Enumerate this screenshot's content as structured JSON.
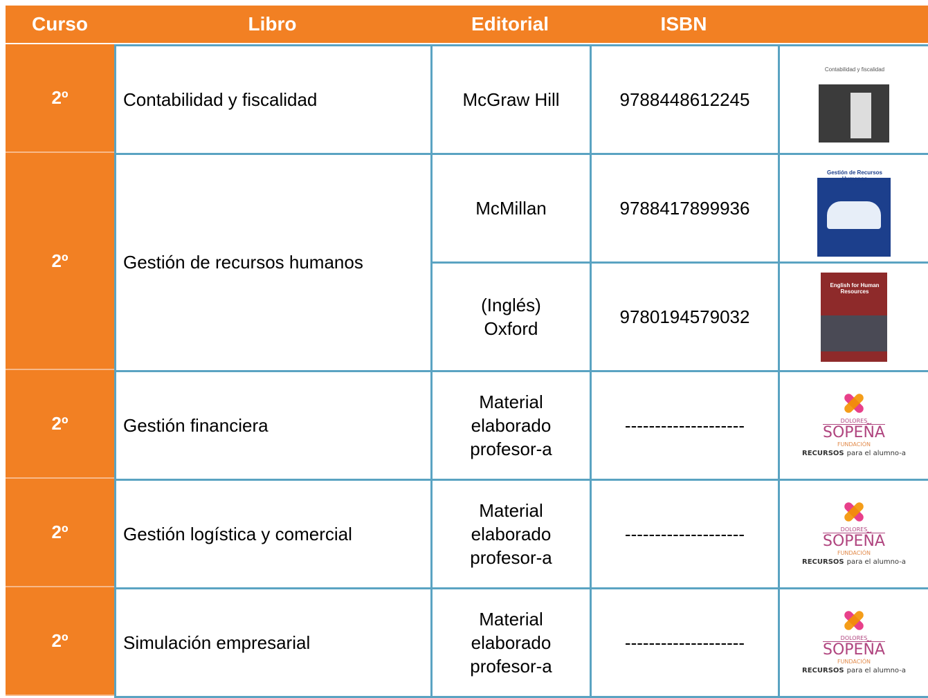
{
  "table": {
    "header": [
      "Curso",
      "Libro",
      "Editorial",
      "ISBN"
    ],
    "rows": [
      {
        "curso": "2º",
        "libro": "Contabilidad y fiscalidad",
        "editions": [
          {
            "editorial": [
              "McGraw Hill"
            ],
            "isbn": "9788448612245",
            "cover": {
              "title": "Contabilidad y fiscalidad",
              "style": "gray"
            }
          }
        ]
      },
      {
        "curso": "2º",
        "libro": "Gestión de recursos humanos",
        "editions": [
          {
            "editorial": [
              "McMillan"
            ],
            "isbn": "9788417899936",
            "cover": {
              "title": "Gestión de Recursos Humanos",
              "style": "blue"
            }
          },
          {
            "editorial": [
              "(Inglés)",
              "Oxford"
            ],
            "isbn": "9780194579032",
            "cover": {
              "title": "English for Human Resources",
              "style": "red"
            }
          }
        ]
      },
      {
        "curso": "2º",
        "libro": "Gestión financiera",
        "editions": [
          {
            "editorial": [
              "Material",
              "elaborado",
              "profesor-a"
            ],
            "isbn": "--------------------",
            "logo": true
          }
        ]
      },
      {
        "curso": "2º",
        "libro": "Gestión logística y comercial",
        "editions": [
          {
            "editorial": [
              "Material",
              "elaborado",
              "profesor-a"
            ],
            "isbn": "--------------------",
            "logo": true
          }
        ]
      },
      {
        "curso": "2º",
        "libro": "Simulación empresarial",
        "editions": [
          {
            "editorial": [
              "Material",
              "elaborado",
              "profesor-a"
            ],
            "isbn": "--------------------",
            "logo": true
          }
        ]
      }
    ]
  },
  "logo": {
    "top": "DOLORES",
    "name": "SOPEÑA",
    "sub": "FUNDACIÓN",
    "caption_bold": "RECURSOS",
    "caption": "para el  alumno-a"
  }
}
